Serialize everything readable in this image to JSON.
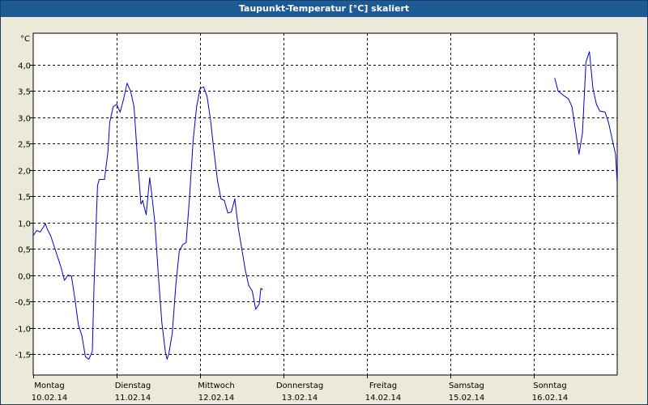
{
  "window": {
    "title": "Taupunkt-Temperatur [°C] skaliert"
  },
  "chart_data": {
    "type": "line",
    "title": "Taupunkt-Temperatur [°C] skaliert",
    "ylabel": "°C",
    "xlabel": "",
    "ylim": [
      -1.9,
      4.6
    ],
    "xlim": [
      "10.02.14 00:00",
      "17.02.14 00:00"
    ],
    "grid": true,
    "yticks": [
      {
        "value": 4.0,
        "label": "4,0"
      },
      {
        "value": 3.5,
        "label": "3,5"
      },
      {
        "value": 3.0,
        "label": "3,0"
      },
      {
        "value": 2.5,
        "label": "2,5"
      },
      {
        "value": 2.0,
        "label": "2,0"
      },
      {
        "value": 1.5,
        "label": "1,5"
      },
      {
        "value": 1.0,
        "label": "1,0"
      },
      {
        "value": 0.5,
        "label": "0,5"
      },
      {
        "value": 0.0,
        "label": "0,0"
      },
      {
        "value": -0.5,
        "label": "-0,5"
      },
      {
        "value": -1.0,
        "label": "-1,0"
      },
      {
        "value": -1.5,
        "label": "-1,5"
      }
    ],
    "xticks": [
      {
        "day": 0,
        "weekday": "Montag",
        "date": "10.02.14"
      },
      {
        "day": 1,
        "weekday": "Dienstag",
        "date": "11.02.14"
      },
      {
        "day": 2,
        "weekday": "Mittwoch",
        "date": "12.02.14"
      },
      {
        "day": 3,
        "weekday": "Donnerstag",
        "date": "13.02.14"
      },
      {
        "day": 4,
        "weekday": "Freitag",
        "date": "14.02.14"
      },
      {
        "day": 5,
        "weekday": "Samstag",
        "date": "15.02.14"
      },
      {
        "day": 6,
        "weekday": "Sonntag",
        "date": "16.02.14"
      }
    ],
    "series": [
      {
        "color": "#0000cc",
        "segments": [
          [
            [
              "10.02.14 00:00",
              0.75
            ],
            [
              "10.02.14 01:00",
              0.85
            ],
            [
              "10.02.14 02:00",
              0.82
            ],
            [
              "10.02.14 03:00",
              0.92
            ],
            [
              "10.02.14 03:30",
              0.98
            ],
            [
              "10.02.14 04:00",
              0.88
            ],
            [
              "10.02.14 05:00",
              0.75
            ],
            [
              "10.02.14 06:00",
              0.55
            ],
            [
              "10.02.14 07:00",
              0.35
            ],
            [
              "10.02.14 08:00",
              0.15
            ],
            [
              "10.02.14 09:00",
              -0.1
            ],
            [
              "10.02.14 10:00",
              0.0
            ],
            [
              "10.02.14 11:00",
              -0.02
            ],
            [
              "10.02.14 12:00",
              -0.45
            ],
            [
              "10.02.14 13:00",
              -0.95
            ],
            [
              "10.02.14 14:00",
              -1.15
            ],
            [
              "10.02.14 15:00",
              -1.55
            ],
            [
              "10.02.14 16:00",
              -1.6
            ],
            [
              "10.02.14 17:00",
              -1.45
            ],
            [
              "10.02.14 17:30",
              -0.2
            ],
            [
              "10.02.14 18:00",
              0.8
            ],
            [
              "10.02.14 18:30",
              1.7
            ],
            [
              "10.02.14 19:00",
              1.82
            ],
            [
              "10.02.14 20:30",
              1.82
            ],
            [
              "10.02.14 21:30",
              2.35
            ],
            [
              "10.02.14 22:00",
              2.9
            ],
            [
              "10.02.14 23:00",
              3.2
            ],
            [
              "11.02.14 00:00",
              3.25
            ],
            [
              "11.02.14 01:00",
              3.1
            ],
            [
              "11.02.14 02:00",
              3.35
            ],
            [
              "11.02.14 03:00",
              3.65
            ],
            [
              "11.02.14 04:00",
              3.5
            ],
            [
              "11.02.14 05:00",
              3.2
            ],
            [
              "11.02.14 06:00",
              2.2
            ],
            [
              "11.02.14 07:00",
              1.35
            ],
            [
              "11.02.14 07:30",
              1.42
            ],
            [
              "11.02.14 08:00",
              1.28
            ],
            [
              "11.02.14 08:30",
              1.15
            ],
            [
              "11.02.14 09:00",
              1.5
            ],
            [
              "11.02.14 09:30",
              1.85
            ],
            [
              "11.02.14 10:00",
              1.6
            ],
            [
              "11.02.14 11:00",
              1.0
            ],
            [
              "11.02.14 12:00",
              0.0
            ],
            [
              "11.02.14 13:00",
              -0.9
            ],
            [
              "11.02.14 14:00",
              -1.45
            ],
            [
              "11.02.14 14:30",
              -1.6
            ],
            [
              "11.02.14 15:00",
              -1.5
            ],
            [
              "11.02.14 16:00",
              -1.1
            ],
            [
              "11.02.14 17:00",
              -0.2
            ],
            [
              "11.02.14 18:00",
              0.45
            ],
            [
              "11.02.14 19:00",
              0.58
            ],
            [
              "11.02.14 20:00",
              0.62
            ],
            [
              "11.02.14 21:00",
              1.5
            ],
            [
              "11.02.14 22:00",
              2.55
            ],
            [
              "11.02.14 23:00",
              3.2
            ],
            [
              "12.02.14 00:00",
              3.55
            ],
            [
              "12.02.14 01:00",
              3.58
            ],
            [
              "12.02.14 02:00",
              3.4
            ],
            [
              "12.02.14 03:00",
              2.95
            ],
            [
              "12.02.14 04:00",
              2.35
            ],
            [
              "12.02.14 05:00",
              1.8
            ],
            [
              "12.02.14 06:00",
              1.45
            ],
            [
              "12.02.14 07:00",
              1.42
            ],
            [
              "12.02.14 08:00",
              1.18
            ],
            [
              "12.02.14 09:00",
              1.2
            ],
            [
              "12.02.14 10:00",
              1.45
            ],
            [
              "12.02.14 11:00",
              0.9
            ],
            [
              "12.02.14 12:00",
              0.5
            ],
            [
              "12.02.14 13:00",
              0.1
            ],
            [
              "12.02.14 14:00",
              -0.2
            ],
            [
              "12.02.14 15:00",
              -0.3
            ],
            [
              "12.02.14 16:00",
              -0.65
            ],
            [
              "12.02.14 17:00",
              -0.55
            ],
            [
              "12.02.14 17:30",
              -0.25
            ],
            [
              "12.02.14 18:00",
              -0.28
            ]
          ],
          [
            [
              "16.02.14 06:00",
              3.75
            ],
            [
              "16.02.14 07:00",
              3.5
            ],
            [
              "16.02.14 08:30",
              3.42
            ],
            [
              "16.02.14 10:00",
              3.35
            ],
            [
              "16.02.14 11:00",
              3.2
            ],
            [
              "16.02.14 12:00",
              2.75
            ],
            [
              "16.02.14 13:00",
              2.3
            ],
            [
              "16.02.14 14:00",
              2.7
            ],
            [
              "16.02.14 15:00",
              4.05
            ],
            [
              "16.02.14 16:00",
              4.25
            ],
            [
              "16.02.14 17:00",
              3.55
            ],
            [
              "16.02.14 18:00",
              3.25
            ],
            [
              "16.02.14 19:00",
              3.12
            ],
            [
              "16.02.14 20:30",
              3.1
            ],
            [
              "16.02.14 21:30",
              2.9
            ],
            [
              "16.02.14 22:30",
              2.6
            ],
            [
              "16.02.14 23:30",
              2.3
            ],
            [
              "17.02.14 00:00",
              1.75
            ]
          ]
        ]
      }
    ]
  }
}
